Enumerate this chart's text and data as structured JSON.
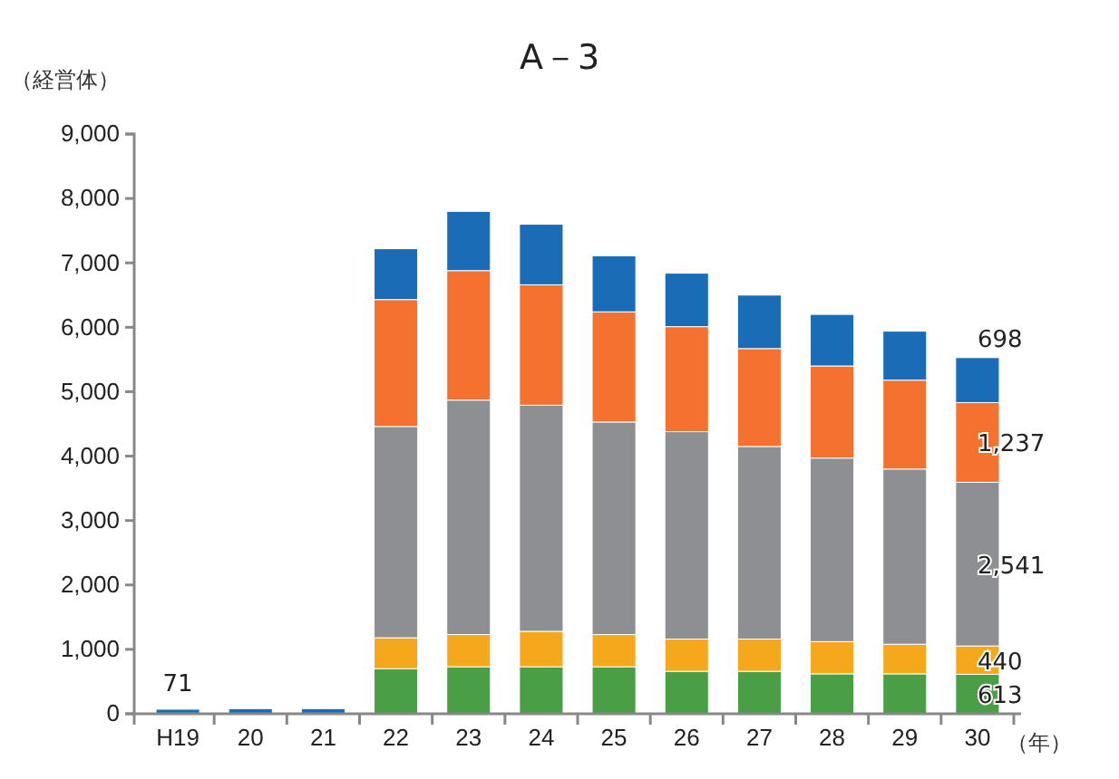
{
  "chart_data": {
    "type": "bar",
    "title": "A－3",
    "ylabel": "（経営体）",
    "xlabel": "（年）",
    "categories": [
      "H19",
      "20",
      "21",
      "22",
      "23",
      "24",
      "25",
      "26",
      "27",
      "28",
      "29",
      "30"
    ],
    "stacked": true,
    "series": [
      {
        "color": "#4a9e45",
        "values": [
          null,
          null,
          null,
          700,
          730,
          730,
          730,
          660,
          660,
          620,
          620,
          613
        ],
        "value_labels": [
          null,
          null,
          null,
          null,
          null,
          null,
          null,
          null,
          null,
          null,
          null,
          "613"
        ]
      },
      {
        "color": "#f5a81c",
        "values": [
          null,
          null,
          null,
          480,
          500,
          550,
          500,
          500,
          500,
          500,
          460,
          440
        ],
        "value_labels": [
          null,
          null,
          null,
          null,
          null,
          null,
          null,
          null,
          null,
          null,
          null,
          "440"
        ]
      },
      {
        "color": "#8e8f93",
        "values": [
          null,
          null,
          null,
          3280,
          3640,
          3510,
          3300,
          3220,
          2990,
          2850,
          2720,
          2541
        ],
        "value_labels": [
          null,
          null,
          null,
          null,
          null,
          null,
          null,
          null,
          null,
          null,
          null,
          "2,541"
        ]
      },
      {
        "color": "#f47130",
        "values": [
          null,
          null,
          null,
          1970,
          2010,
          1870,
          1710,
          1630,
          1520,
          1430,
          1380,
          1237
        ],
        "value_labels": [
          null,
          null,
          null,
          null,
          null,
          null,
          null,
          null,
          null,
          null,
          null,
          "1,237"
        ]
      },
      {
        "color": "#1b6cb7",
        "values": [
          71,
          80,
          80,
          790,
          920,
          940,
          870,
          830,
          830,
          800,
          760,
          698
        ],
        "value_labels": [
          "71",
          null,
          null,
          null,
          null,
          null,
          null,
          null,
          null,
          null,
          null,
          "698"
        ]
      }
    ],
    "ylim": [
      0,
      9000
    ],
    "yticks": [
      0,
      {
        "value": 1000,
        "label": "1,000"
      },
      {
        "value": 2000,
        "label": "2,000"
      },
      {
        "value": 3000,
        "label": "3,000"
      },
      {
        "value": 4000,
        "label": "4,000"
      },
      {
        "value": 5000,
        "label": "5,000"
      },
      {
        "value": 6000,
        "label": "6,000"
      },
      {
        "value": 7000,
        "label": "7,000"
      },
      {
        "value": 8000,
        "label": "8,000"
      },
      {
        "value": 9000,
        "label": "9,000"
      }
    ],
    "grid": false
  }
}
